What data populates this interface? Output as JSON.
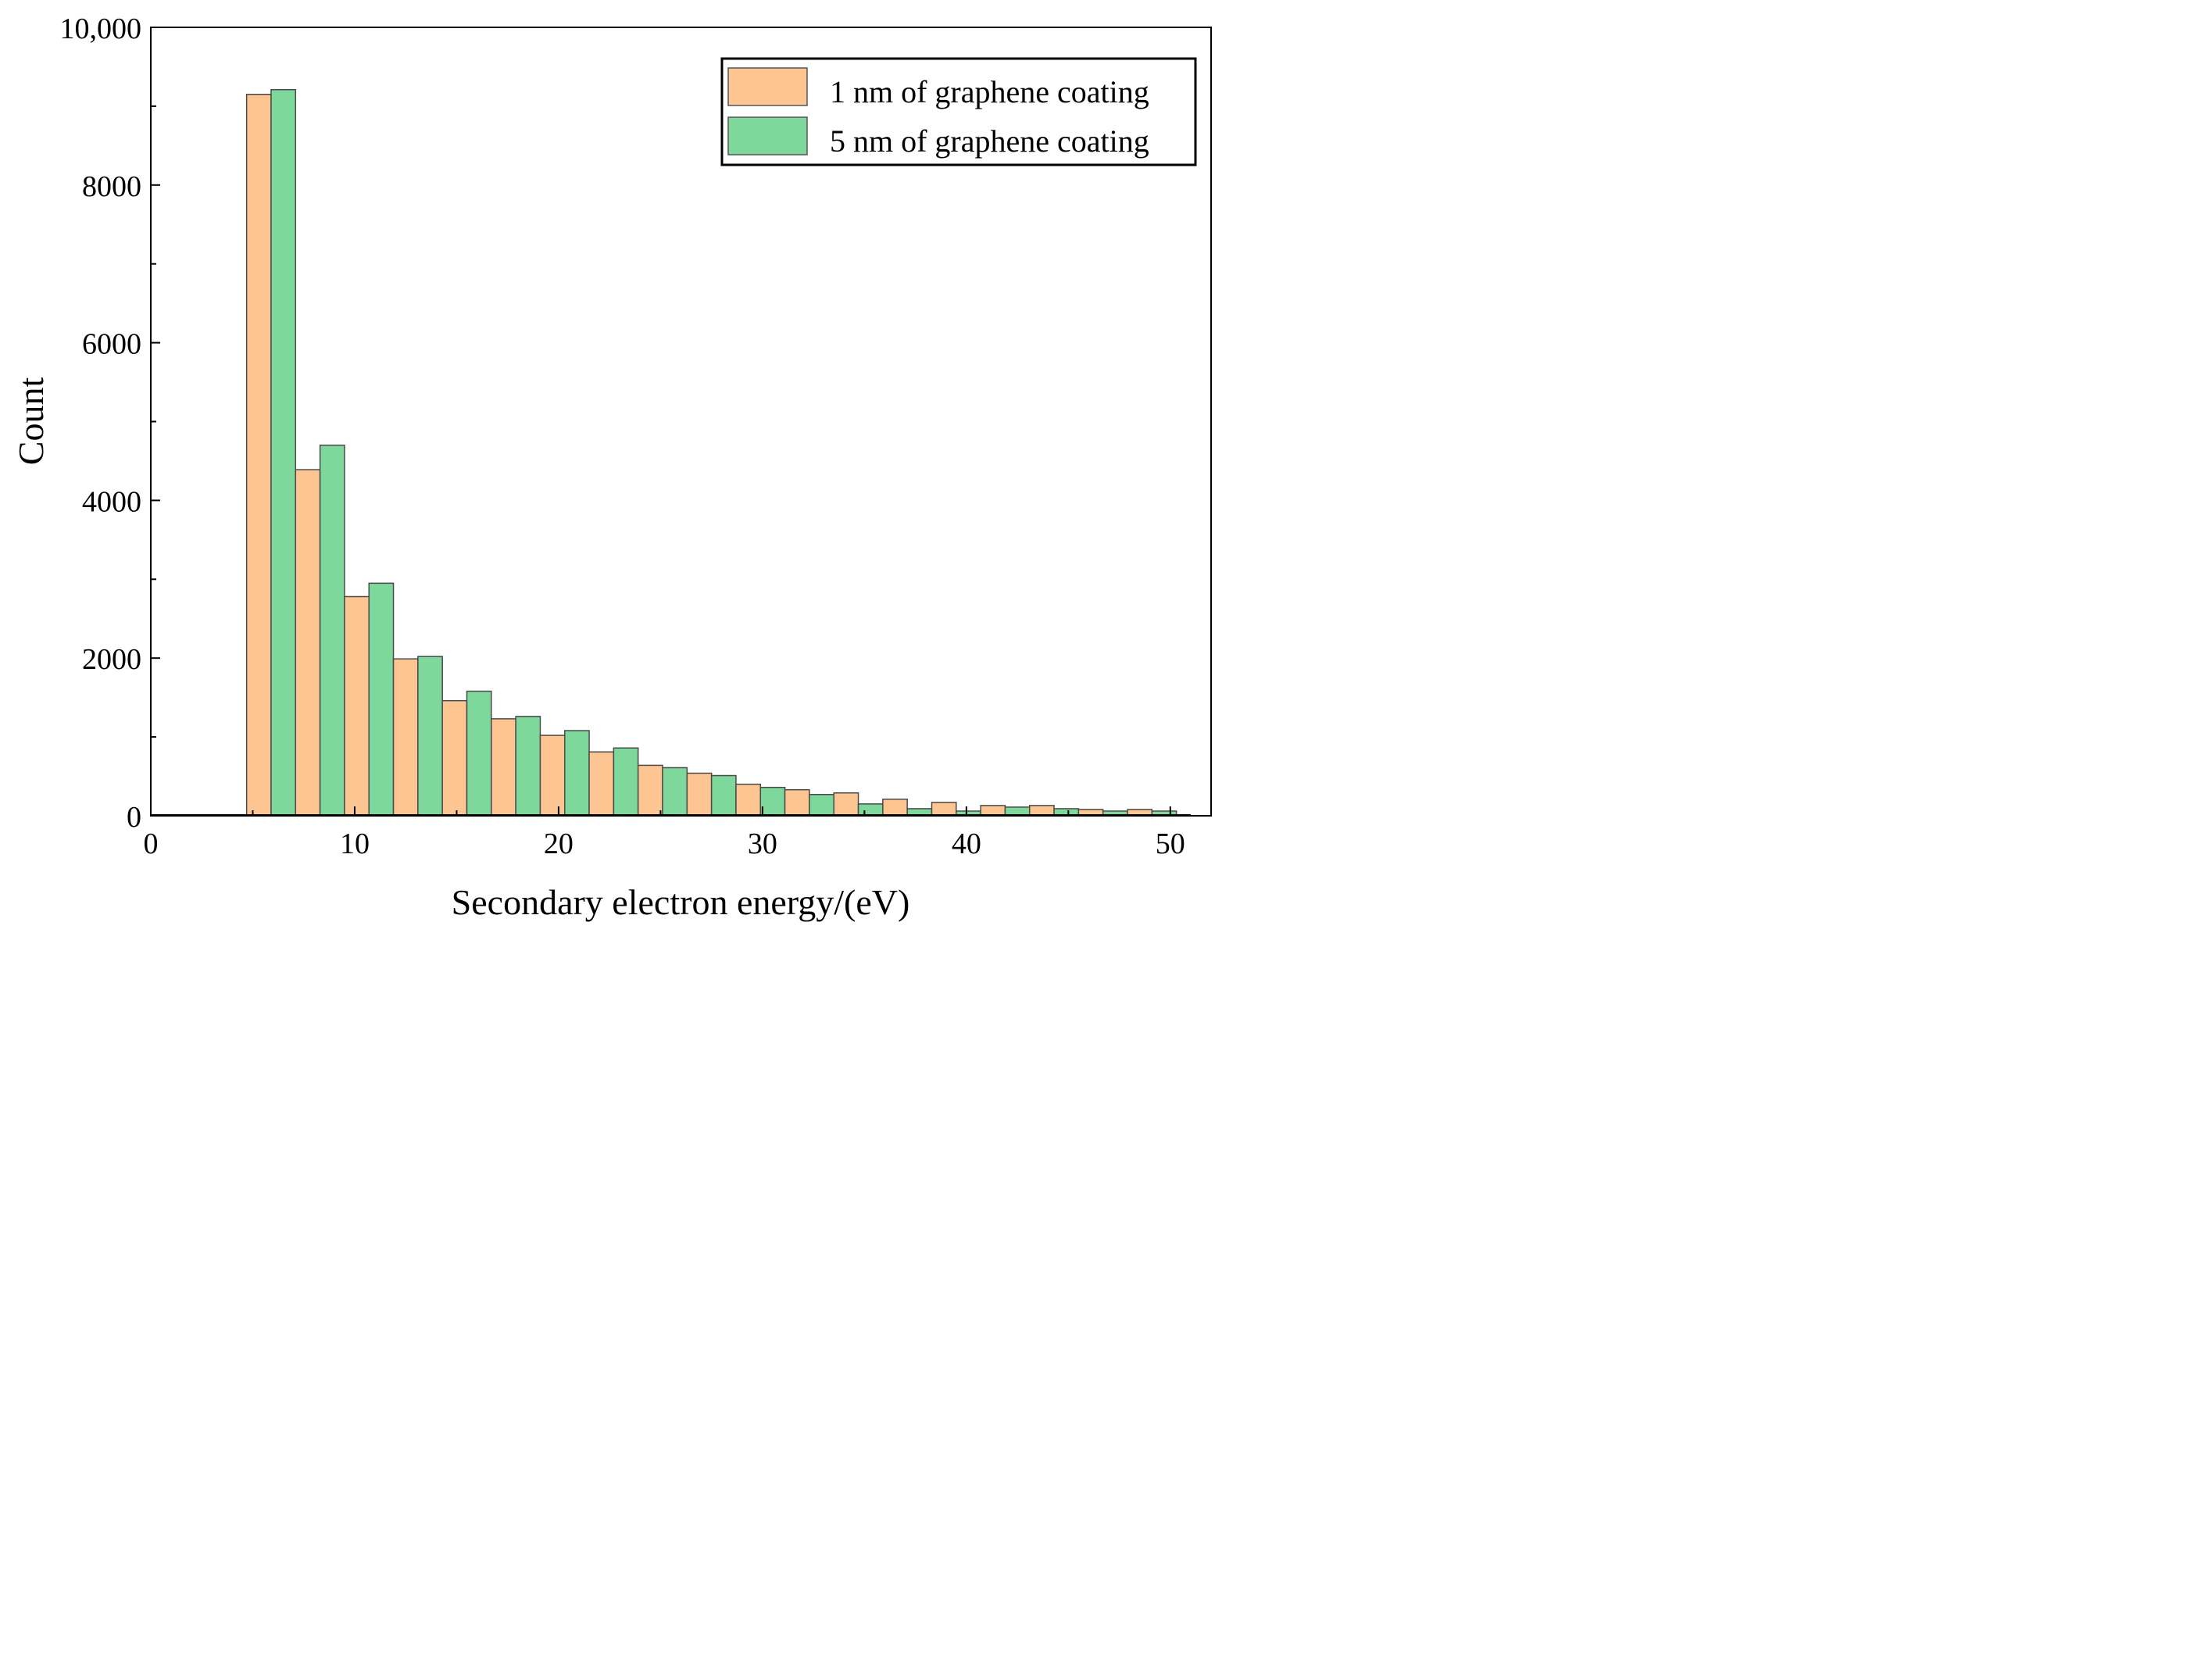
{
  "chart_data": {
    "type": "bar",
    "title": "",
    "xlabel": "Secondary electron energy/(eV)",
    "ylabel": "Count",
    "xlim": [
      0,
      52
    ],
    "ylim": [
      0,
      10000
    ],
    "grid": false,
    "legend_position": "top-right",
    "x_ticks": [
      {
        "value": 0,
        "label": "0"
      },
      {
        "value": 10,
        "label": "10"
      },
      {
        "value": 20,
        "label": "20"
      },
      {
        "value": 30,
        "label": "30"
      },
      {
        "value": 40,
        "label": "40"
      },
      {
        "value": 50,
        "label": "50"
      }
    ],
    "y_ticks": [
      {
        "value": 0,
        "label": "0"
      },
      {
        "value": 2000,
        "label": "2000"
      },
      {
        "value": 4000,
        "label": "4000"
      },
      {
        "value": 6000,
        "label": "6000"
      },
      {
        "value": 8000,
        "label": "8000"
      },
      {
        "value": 10000,
        "label": "10,000"
      }
    ],
    "bin_starts": [
      4.7,
      7.1,
      9.5,
      11.9,
      14.3,
      16.7,
      19.1,
      21.5,
      23.9,
      26.3,
      28.7,
      31.1,
      33.5,
      35.9,
      38.3,
      40.7,
      43.1,
      45.5,
      47.9
    ],
    "bin_width": 2.4,
    "baseline_start": 0,
    "baseline_end": 51,
    "series": [
      {
        "name": "1 nm of graphene coating",
        "color": "#FDC591",
        "values": [
          9150,
          4390,
          2780,
          1990,
          1460,
          1230,
          1020,
          810,
          640,
          540,
          400,
          330,
          290,
          210,
          170,
          130,
          130,
          80,
          80
        ]
      },
      {
        "name": "5 nm of graphene coating",
        "color": "#7ED89B",
        "values": [
          9210,
          4700,
          2950,
          2020,
          1580,
          1260,
          1080,
          860,
          610,
          510,
          360,
          270,
          150,
          90,
          60,
          110,
          90,
          60,
          60
        ]
      }
    ]
  }
}
